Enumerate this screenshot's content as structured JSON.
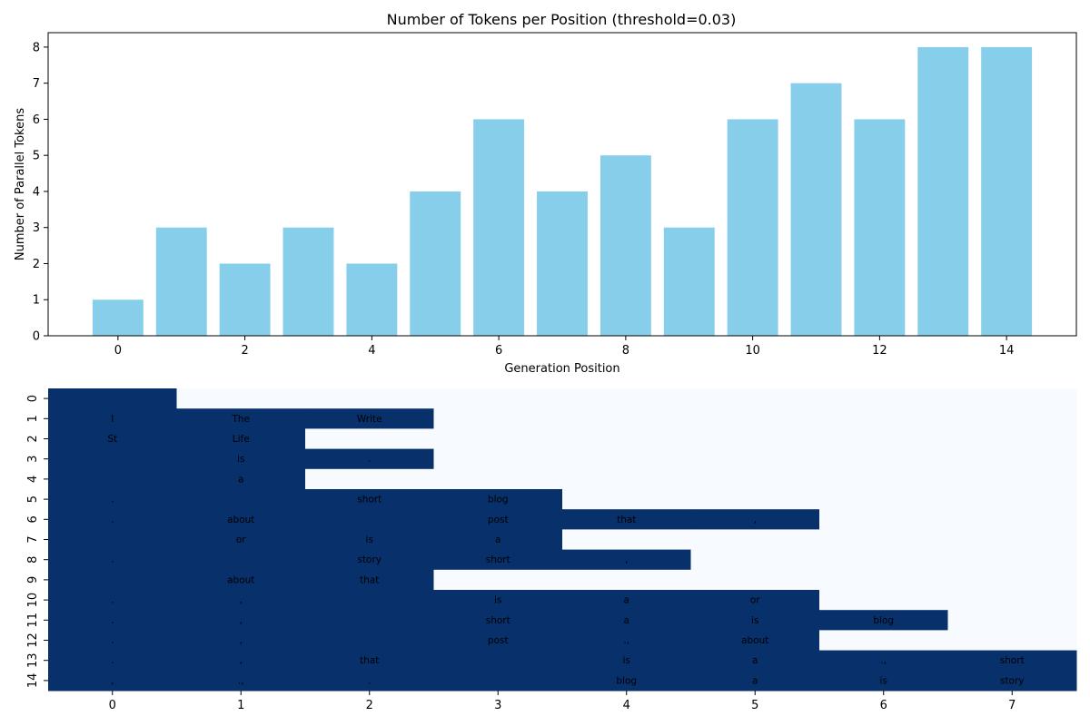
{
  "chart_data": [
    {
      "type": "bar",
      "title": "Number of Tokens per Position (threshold=0.03)",
      "xlabel": "Generation Position",
      "ylabel": "Number of Parallel Tokens",
      "categories": [
        0,
        1,
        2,
        3,
        4,
        5,
        6,
        7,
        8,
        9,
        10,
        11,
        12,
        13,
        14
      ],
      "values": [
        1,
        3,
        2,
        3,
        2,
        4,
        6,
        4,
        5,
        3,
        6,
        7,
        6,
        8,
        8
      ],
      "xlim": [
        -1.1,
        15.1
      ],
      "ylim": [
        0,
        8.4
      ],
      "xticks": [
        0,
        2,
        4,
        6,
        8,
        10,
        12,
        14
      ],
      "yticks": [
        0,
        1,
        2,
        3,
        4,
        5,
        6,
        7,
        8
      ],
      "color": "#87ceeb",
      "grid": false
    },
    {
      "type": "heatmap",
      "rows": [
        0,
        1,
        2,
        3,
        4,
        5,
        6,
        7,
        8,
        9,
        10,
        11,
        12,
        13,
        14
      ],
      "columns": [
        0,
        1,
        2,
        3,
        4,
        5,
        6,
        7
      ],
      "filled_counts": [
        1,
        3,
        2,
        3,
        2,
        4,
        6,
        4,
        5,
        3,
        6,
        7,
        6,
        8,
        8
      ],
      "cells": [
        [
          "",
          "",
          "",
          "",
          "",
          "",
          "",
          ""
        ],
        [
          "I",
          "The",
          "Write",
          "",
          "",
          "",
          "",
          ""
        ],
        [
          "St",
          "Life",
          "",
          "",
          "",
          "",
          "",
          ""
        ],
        [
          "",
          "is",
          ".",
          "",
          "",
          "",
          "",
          ""
        ],
        [
          "",
          "a",
          "",
          "",
          "",
          "",
          "",
          ""
        ],
        [
          ".",
          "",
          "short",
          "blog",
          "",
          "",
          "",
          ""
        ],
        [
          ".",
          "about",
          "",
          "post",
          "that",
          ",",
          "",
          ""
        ],
        [
          "",
          "or",
          "is",
          "a",
          "",
          "",
          "",
          ""
        ],
        [
          ".",
          "",
          "story",
          "short",
          ",",
          "",
          "",
          ""
        ],
        [
          "",
          "about",
          "that",
          "",
          "",
          "",
          "",
          ""
        ],
        [
          ".",
          ",",
          "",
          "is",
          "a",
          "or",
          "",
          ""
        ],
        [
          ".",
          ",",
          "",
          "short",
          "a",
          "is",
          "blog",
          ""
        ],
        [
          ".",
          ",",
          "",
          "post",
          ".,",
          "about",
          "",
          ""
        ],
        [
          ".",
          ",",
          "that",
          "",
          "is",
          "a",
          ".,",
          "short"
        ],
        [
          ",",
          ".,",
          ".",
          "",
          "blog",
          "a",
          "is",
          "story"
        ]
      ],
      "filled_color": "#08306b",
      "empty_color": "#f7fbff"
    }
  ]
}
